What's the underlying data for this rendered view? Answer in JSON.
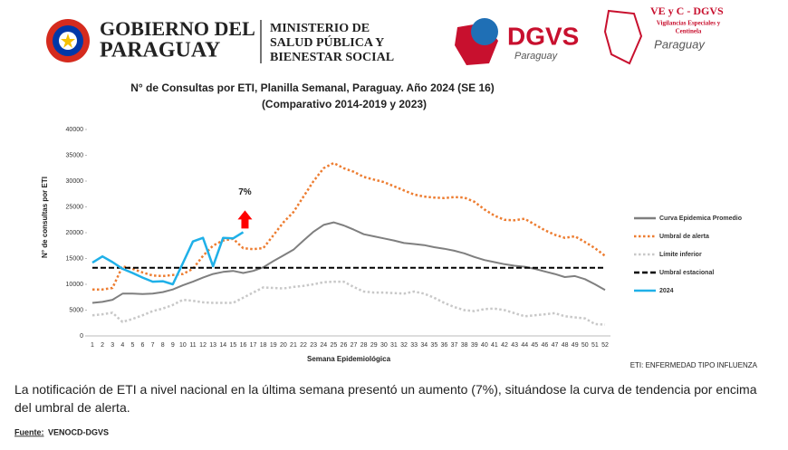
{
  "header": {
    "gov_line1": "GOBIERNO DEL",
    "gov_line2": "PARAGUAY",
    "ministry_line1": "MINISTERIO DE",
    "ministry_line2": "SALUD PÚBLICA Y",
    "ministry_line3": "BIENESTAR SOCIAL",
    "dgvs": "DGVS",
    "dgvs_sub": "Paraguay",
    "vec_title": "VE y C - DGVS",
    "vec_line1": "Vigilancias Especiales y",
    "vec_line2": "Centinela",
    "vec_sub": "Paraguay"
  },
  "chart_data": {
    "type": "line",
    "title": "N° de Consultas por ETI, Planilla Semanal, Paraguay. Año 2024  (SE 16)",
    "subtitle": "(Comparativo 2014-2019 y 2023)",
    "x_label": "Semana Epidemiológica",
    "y_label": "N° de consultas por ETI",
    "x": [
      1,
      2,
      3,
      4,
      5,
      6,
      7,
      8,
      9,
      10,
      11,
      12,
      13,
      14,
      15,
      16,
      17,
      18,
      19,
      20,
      21,
      22,
      23,
      24,
      25,
      26,
      27,
      28,
      29,
      30,
      31,
      32,
      33,
      34,
      35,
      36,
      37,
      38,
      39,
      40,
      41,
      42,
      43,
      44,
      45,
      46,
      47,
      48,
      49,
      50,
      51,
      52
    ],
    "xlim": [
      1,
      52
    ],
    "ylim": [
      0,
      40000
    ],
    "yticks": [
      0,
      5000,
      10000,
      15000,
      20000,
      25000,
      30000,
      35000,
      40000
    ],
    "series": [
      {
        "name": "Curva Epidemica Promedio",
        "color": "#7f7f7f",
        "line_style": "solid",
        "values": [
          6400,
          6600,
          7000,
          8200,
          8200,
          8100,
          8200,
          8500,
          9000,
          9800,
          10500,
          11300,
          12000,
          12400,
          12600,
          12200,
          12600,
          13300,
          14500,
          15600,
          16700,
          18500,
          20200,
          21500,
          22000,
          21400,
          20600,
          19700,
          19300,
          18900,
          18500,
          18000,
          17800,
          17600,
          17200,
          16900,
          16500,
          16000,
          15300,
          14700,
          14300,
          13900,
          13600,
          13400,
          13000,
          12500,
          12000,
          11400,
          11600,
          11000,
          10000,
          8900
        ]
      },
      {
        "name": "Umbral de alerta",
        "color": "#ed7d31",
        "line_style": "dotted",
        "values": [
          9000,
          9000,
          9300,
          13500,
          13000,
          12300,
          11700,
          11600,
          11800,
          12000,
          13000,
          15500,
          17500,
          18500,
          18800,
          17000,
          16800,
          17000,
          19500,
          22000,
          24000,
          27000,
          30000,
          32500,
          33500,
          32500,
          31800,
          30800,
          30300,
          29800,
          29000,
          28200,
          27400,
          27000,
          26800,
          26700,
          26900,
          26800,
          26000,
          24500,
          23300,
          22500,
          22400,
          22700,
          21600,
          20500,
          19600,
          19000,
          19300,
          18200,
          17000,
          15500
        ]
      },
      {
        "name": "Límite inferior",
        "color": "#c8c8c8",
        "line_style": "dotted",
        "values": [
          4000,
          4200,
          4500,
          2700,
          3300,
          4000,
          4800,
          5300,
          6000,
          7000,
          6800,
          6500,
          6400,
          6400,
          6400,
          7400,
          8400,
          9400,
          9300,
          9200,
          9500,
          9700,
          10000,
          10400,
          10500,
          10500,
          9500,
          8600,
          8400,
          8400,
          8300,
          8200,
          8600,
          8200,
          7400,
          6400,
          5600,
          5000,
          4800,
          5200,
          5300,
          5000,
          4400,
          3800,
          4000,
          4200,
          4400,
          3800,
          3600,
          3400,
          2300,
          2200
        ]
      },
      {
        "name": "Umbral estacional",
        "color": "#000000",
        "line_style": "dashed",
        "values": [
          13200,
          13200,
          13200,
          13200,
          13200,
          13200,
          13200,
          13200,
          13200,
          13200,
          13200,
          13200,
          13200,
          13200,
          13200,
          13200,
          13200,
          13200,
          13200,
          13200,
          13200,
          13200,
          13200,
          13200,
          13200,
          13200,
          13200,
          13200,
          13200,
          13200,
          13200,
          13200,
          13200,
          13200,
          13200,
          13200,
          13200,
          13200,
          13200,
          13200,
          13200,
          13200,
          13200,
          13200,
          13200,
          13200,
          13200,
          13200,
          13200,
          13200,
          13200,
          13200
        ]
      },
      {
        "name": "2024",
        "color": "#1fb0e8",
        "line_style": "solid",
        "values": [
          14200,
          15400,
          14300,
          13000,
          12200,
          11300,
          10500,
          10600,
          10000,
          14100,
          18300,
          19000,
          13500,
          19000,
          18900,
          20100,
          null,
          null,
          null,
          null,
          null,
          null,
          null,
          null,
          null,
          null,
          null,
          null,
          null,
          null,
          null,
          null,
          null,
          null,
          null,
          null,
          null,
          null,
          null,
          null,
          null,
          null,
          null,
          null,
          null,
          null,
          null,
          null,
          null,
          null,
          null,
          null
        ]
      }
    ],
    "annotation": "7%",
    "annotation_color": "#ff0000",
    "legend": "right"
  },
  "footnote": "ETI: ENFERMEDAD TIPO INFLUENZA",
  "summary": "La notificación de ETI a nivel nacional en la última semana presentó un aumento (7%), situándose la curva de tendencia por encima del umbral de alerta.",
  "source_label": "Fuente:",
  "source": "VENOCD-DGVS"
}
